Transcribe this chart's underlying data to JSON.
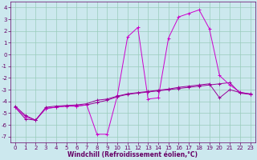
{
  "xlabel": "Windchill (Refroidissement éolien,°C)",
  "xlim": [
    -0.5,
    23.5
  ],
  "ylim": [
    -7.5,
    4.5
  ],
  "xticks": [
    0,
    1,
    2,
    3,
    4,
    5,
    6,
    7,
    8,
    9,
    10,
    11,
    12,
    13,
    14,
    15,
    16,
    17,
    18,
    19,
    20,
    21,
    22,
    23
  ],
  "yticks": [
    -7,
    -6,
    -5,
    -4,
    -3,
    -2,
    -1,
    0,
    1,
    2,
    3,
    4
  ],
  "bg_color": "#cce8ee",
  "line_color1": "#990099",
  "line_color2": "#cc00cc",
  "grid_color": "#99ccbb",
  "sa": [
    -4.5,
    -5.5,
    -5.6,
    -4.6,
    -4.5,
    -4.4,
    -4.4,
    -4.3,
    -4.1,
    -3.9,
    -3.6,
    -3.4,
    -3.3,
    -3.2,
    -3.1,
    -3.0,
    -2.9,
    -2.8,
    -2.7,
    -2.6,
    -2.5,
    -2.4,
    -3.3,
    -3.4
  ],
  "sb": [
    -4.5,
    -5.3,
    -5.6,
    -4.6,
    -4.5,
    -4.4,
    -4.4,
    -4.3,
    -6.8,
    -6.8,
    -3.5,
    1.5,
    2.3,
    -3.8,
    -3.7,
    1.4,
    3.2,
    3.5,
    3.8,
    2.2,
    -1.8,
    -2.6,
    -3.2,
    -3.4
  ],
  "sc": [
    -4.4,
    -5.2,
    -5.6,
    -4.5,
    -4.4,
    -4.35,
    -4.3,
    -4.2,
    -3.9,
    -3.8,
    -3.55,
    -3.35,
    -3.25,
    -3.15,
    -3.05,
    -2.95,
    -2.8,
    -2.7,
    -2.6,
    -2.5,
    -3.7,
    -3.0,
    -3.25,
    -3.35
  ],
  "font_color": "#660066",
  "tick_fontsize": 5,
  "label_fontsize": 5.5
}
